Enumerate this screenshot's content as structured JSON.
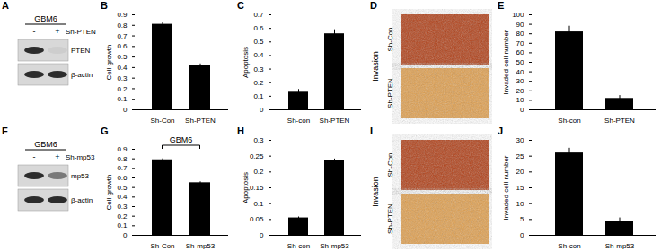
{
  "chart_data": [
    {
      "type": "bar",
      "title": "B",
      "y_label": "Cell growth",
      "categories": [
        "Sh-Con",
        "Sh-PTEN"
      ],
      "values": [
        0.81,
        0.42
      ],
      "errors": [
        0.02,
        0.015
      ],
      "color": "#000000",
      "ylim": [
        0,
        0.9
      ],
      "yticks": [
        0,
        0.1,
        0.2,
        0.3,
        0.4,
        0.5,
        0.6,
        0.7,
        0.8,
        0.9
      ]
    },
    {
      "type": "bar",
      "title": "C",
      "y_label": "Apoptosis",
      "categories": [
        "Sh-con",
        "Sh-PTEN"
      ],
      "values": [
        0.13,
        0.56
      ],
      "errors": [
        0.02,
        0.03
      ],
      "color": "#000000",
      "ylim": [
        0,
        0.7
      ],
      "yticks": [
        0,
        0.1,
        0.2,
        0.3,
        0.4,
        0.5,
        0.6,
        0.7
      ]
    },
    {
      "type": "bar",
      "title": "E",
      "y_label": "Invaded cell number",
      "categories": [
        "Sh-con",
        "Sh-PTEN"
      ],
      "values": [
        82,
        12
      ],
      "errors": [
        6,
        3
      ],
      "color": "#000000",
      "ylim": [
        0,
        100
      ],
      "yticks": [
        0,
        10,
        20,
        30,
        40,
        50,
        60,
        70,
        80,
        90,
        100
      ]
    },
    {
      "type": "bar",
      "title": "G",
      "y_label": "Cell growth",
      "annotation": "GBM6",
      "categories": [
        "Sh-Con",
        "Sh-mp53"
      ],
      "values": [
        0.79,
        0.55
      ],
      "errors": [
        0.01,
        0.01
      ],
      "color": "#000000",
      "ylim": [
        0,
        0.9
      ],
      "yticks": [
        0,
        0.1,
        0.2,
        0.3,
        0.4,
        0.5,
        0.6,
        0.7,
        0.8,
        0.9
      ]
    },
    {
      "type": "bar",
      "title": "H",
      "y_label": "Apoptosis",
      "categories": [
        "Sh-con",
        "Sh-mp53"
      ],
      "values": [
        0.055,
        0.235
      ],
      "errors": [
        0.003,
        0.006
      ],
      "color": "#000000",
      "ylim": [
        0,
        0.3
      ],
      "yticks": [
        0,
        0.05,
        0.1,
        0.15,
        0.2,
        0.25,
        0.3
      ]
    },
    {
      "type": "bar",
      "title": "J",
      "y_label": "Invaded cell number",
      "categories": [
        "Sh-con",
        "Sh-mp53"
      ],
      "values": [
        26,
        4.5
      ],
      "errors": [
        1.5,
        1
      ],
      "color": "#000000",
      "ylim": [
        0,
        30
      ],
      "yticks": [
        0,
        5,
        10,
        15,
        20,
        25,
        30
      ]
    }
  ],
  "blots": [
    {
      "title": "A",
      "cell_line": "GBM6",
      "treatment": "Sh-PTEN",
      "lanes": [
        "-",
        "+"
      ],
      "bands": [
        "PTEN",
        "β-actin"
      ]
    },
    {
      "title": "F",
      "cell_line": "GBM6",
      "treatment": "Sh-mp53",
      "lanes": [
        "-",
        "+"
      ],
      "bands": [
        "mp53",
        "β-actin"
      ]
    }
  ],
  "images": [
    {
      "title": "D",
      "row_label": "Invasion",
      "rows": [
        "Sh-Con",
        "Sh-PTEN"
      ]
    },
    {
      "title": "I",
      "row_label": "Invasion",
      "rows": [
        "Sh-Con",
        "Sh-PTEN"
      ]
    }
  ]
}
